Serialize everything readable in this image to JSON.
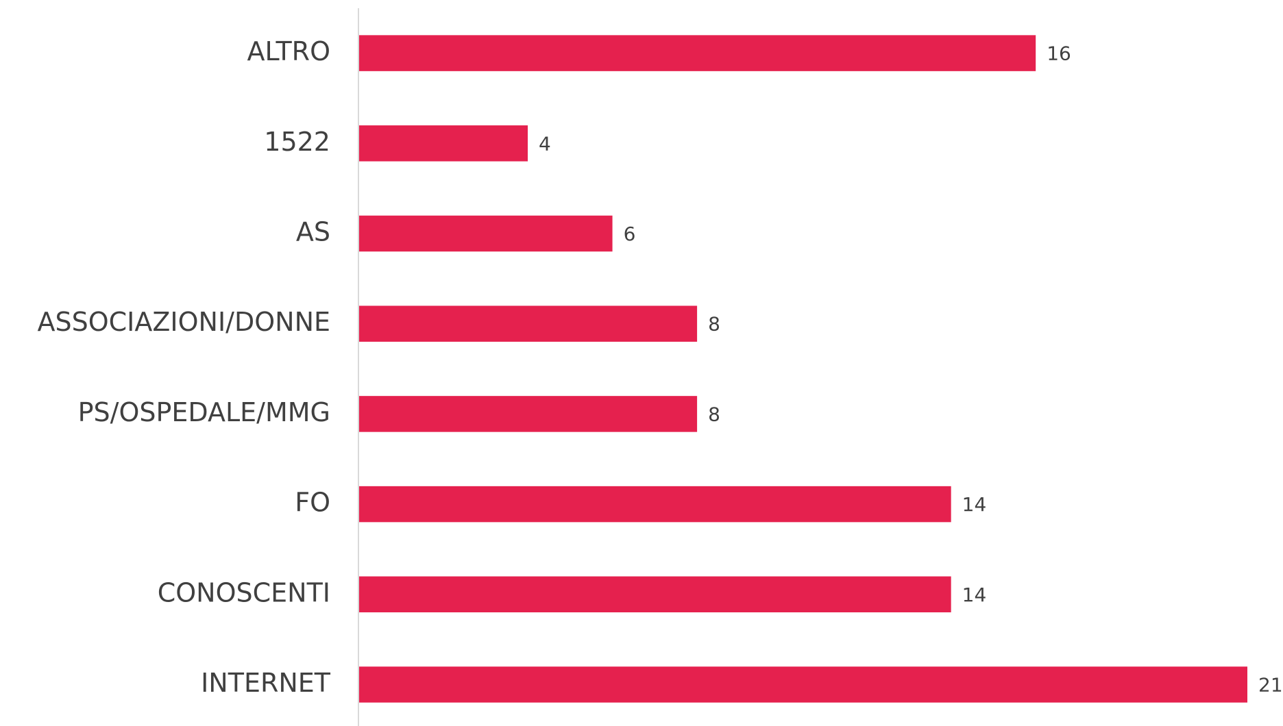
{
  "chart_data": {
    "type": "hbar",
    "categories": [
      "ALTRO",
      "1522",
      "AS",
      "ASSOCIAZIONI/DONNE",
      "PS/OSPEDALE/MMG",
      "FO",
      "CONOSCENTI",
      "INTERNET"
    ],
    "values": [
      16,
      4,
      6,
      8,
      8,
      14,
      14,
      21
    ],
    "color": "#e5214e"
  }
}
